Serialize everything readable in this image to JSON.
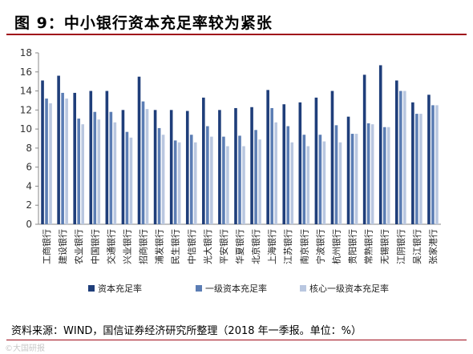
{
  "header": {
    "title": "图 9：中小银行资本充足率较为紧张"
  },
  "source": {
    "text": "资料来源：WIND，国信证券经济研究所整理（2018 年一季报。单位：%）"
  },
  "watermark": {
    "text": "©大国研报"
  },
  "colors": {
    "series0": "#1f3e7a",
    "series1": "#5b7db4",
    "series2": "#b9c7e0",
    "title_rule": "#9f0c1a"
  },
  "chart_data": {
    "type": "bar",
    "title": "",
    "xlabel": "",
    "ylabel": "",
    "ylim": [
      0,
      18
    ],
    "yticks": [
      0,
      2,
      4,
      6,
      8,
      10,
      12,
      14,
      16,
      18
    ],
    "grid": false,
    "legend": "bottom",
    "categories": [
      "工商银行",
      "建设银行",
      "农业银行",
      "中国银行",
      "交通银行",
      "兴业银行",
      "招商银行",
      "浦发银行",
      "民生银行",
      "中信银行",
      "光大银行",
      "平安银行",
      "华夏银行",
      "北京银行",
      "上海银行",
      "江苏银行",
      "南京银行",
      "宁波银行",
      "杭州银行",
      "贵阳银行",
      "常熟银行",
      "无锡银行",
      "江阴银行",
      "吴江银行",
      "张家港行"
    ],
    "series": [
      {
        "name": "资本充足率",
        "values": [
          15.1,
          15.6,
          13.8,
          14.0,
          14.0,
          12.0,
          15.5,
          12.0,
          12.0,
          11.9,
          13.3,
          12.0,
          12.2,
          12.3,
          14.1,
          12.6,
          12.8,
          13.3,
          14.0,
          11.3,
          15.7,
          16.7,
          15.1,
          12.8,
          13.6
        ]
      },
      {
        "name": "一级资本充足率",
        "values": [
          13.2,
          13.8,
          11.1,
          11.8,
          11.8,
          9.7,
          12.9,
          10.1,
          8.8,
          9.4,
          10.3,
          9.2,
          9.3,
          9.9,
          12.2,
          10.3,
          9.4,
          9.4,
          10.4,
          9.5,
          10.6,
          10.2,
          14.0,
          11.6,
          12.5
        ]
      },
      {
        "name": "核心一级资本充足率",
        "values": [
          12.7,
          13.2,
          10.5,
          11.0,
          10.7,
          9.1,
          12.1,
          9.4,
          8.6,
          8.6,
          9.2,
          8.2,
          8.2,
          8.9,
          10.7,
          8.6,
          8.2,
          8.7,
          8.6,
          9.5,
          10.5,
          10.2,
          14.0,
          11.6,
          12.5
        ]
      }
    ]
  }
}
